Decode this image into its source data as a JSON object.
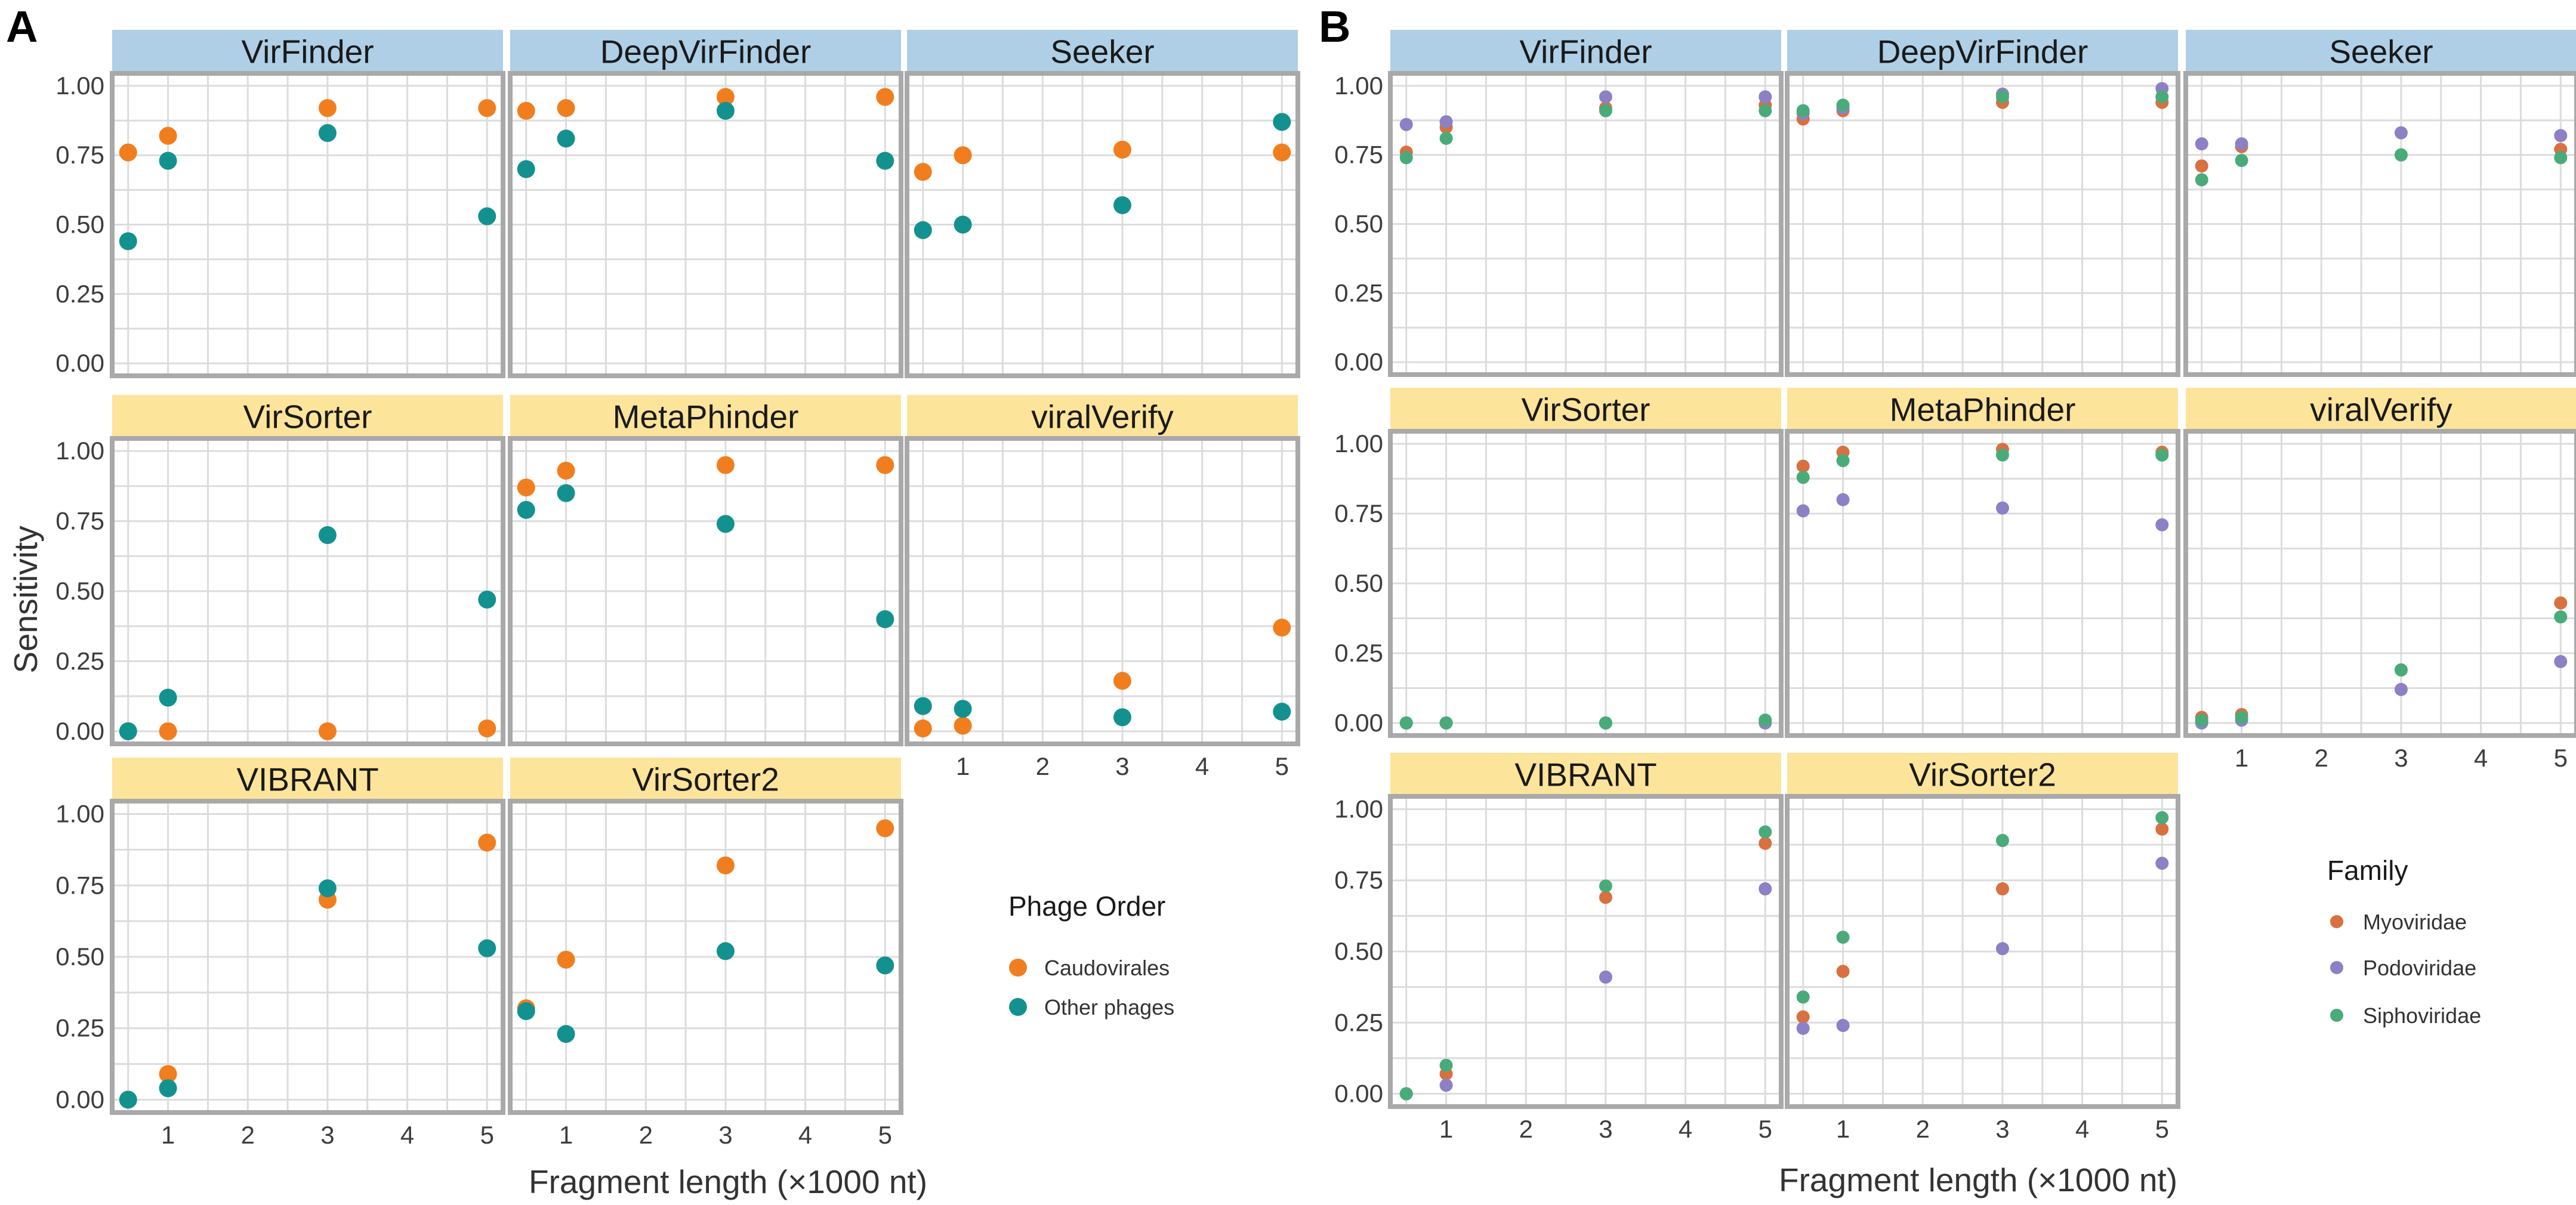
{
  "chart_data": [
    {
      "type": "scatter",
      "label": "A",
      "facet_strip_color": {
        "row1": "#aecfe6",
        "row2": "#fde49b",
        "row3": "#fde49b"
      },
      "ylabel": "Sensitivity",
      "xlabel": "Fragment length (×1000 nt)",
      "xlim": [
        0.3,
        5.2
      ],
      "ylim": [
        0,
        1
      ],
      "x_ticks": [
        1,
        2,
        3,
        4,
        5
      ],
      "y_ticks": [
        "0.00",
        "0.25",
        "0.50",
        "0.75",
        "1.00"
      ],
      "legend": {
        "title": "Phage Order",
        "entries": [
          {
            "name": "Caudovirales",
            "color": "#f17e1e"
          },
          {
            "name": "Other phages",
            "color": "#13918f"
          }
        ]
      },
      "x": [
        0.5,
        1,
        3,
        5
      ],
      "facets": [
        {
          "title": "VirFinder",
          "series": [
            {
              "name": "Caudovirales",
              "values": [
                0.76,
                0.82,
                0.92,
                0.92
              ]
            },
            {
              "name": "Other phages",
              "values": [
                0.44,
                0.73,
                0.83,
                0.53
              ]
            }
          ]
        },
        {
          "title": "DeepVirFinder",
          "series": [
            {
              "name": "Caudovirales",
              "values": [
                0.91,
                0.92,
                0.96,
                0.96
              ]
            },
            {
              "name": "Other phages",
              "values": [
                0.7,
                0.81,
                0.91,
                0.73
              ]
            }
          ]
        },
        {
          "title": "Seeker",
          "series": [
            {
              "name": "Caudovirales",
              "values": [
                0.69,
                0.75,
                0.77,
                0.76
              ]
            },
            {
              "name": "Other phages",
              "values": [
                0.48,
                0.5,
                0.57,
                0.87
              ]
            }
          ]
        },
        {
          "title": "VirSorter",
          "series": [
            {
              "name": "Caudovirales",
              "values": [
                0.0,
                0.0,
                0.0,
                0.01
              ]
            },
            {
              "name": "Other phages",
              "values": [
                0.0,
                0.12,
                0.7,
                0.47
              ]
            }
          ]
        },
        {
          "title": "MetaPhinder",
          "series": [
            {
              "name": "Caudovirales",
              "values": [
                0.87,
                0.93,
                0.95,
                0.95
              ]
            },
            {
              "name": "Other phages",
              "values": [
                0.79,
                0.85,
                0.74,
                0.4
              ]
            }
          ]
        },
        {
          "title": "viralVerify",
          "series": [
            {
              "name": "Caudovirales",
              "values": [
                0.01,
                0.02,
                0.18,
                0.37
              ]
            },
            {
              "name": "Other phages",
              "values": [
                0.09,
                0.08,
                0.05,
                0.07
              ]
            }
          ]
        },
        {
          "title": "VIBRANT",
          "series": [
            {
              "name": "Caudovirales",
              "values": [
                0.0,
                0.09,
                0.7,
                0.9
              ]
            },
            {
              "name": "Other phages",
              "values": [
                0.0,
                0.04,
                0.74,
                0.53
              ]
            }
          ]
        },
        {
          "title": "VirSorter2",
          "series": [
            {
              "name": "Caudovirales",
              "values": [
                0.32,
                0.49,
                0.82,
                0.95
              ]
            },
            {
              "name": "Other phages",
              "values": [
                0.31,
                0.23,
                0.52,
                0.47
              ]
            }
          ]
        }
      ]
    },
    {
      "type": "scatter",
      "label": "B",
      "facet_strip_color": {
        "row1": "#aecfe6",
        "row2": "#fde49b",
        "row3": "#fde49b"
      },
      "ylabel": "",
      "xlabel": "Fragment length (×1000 nt)",
      "xlim": [
        0.3,
        5.2
      ],
      "ylim": [
        0,
        1
      ],
      "x_ticks": [
        1,
        2,
        3,
        4,
        5
      ],
      "y_ticks": [
        "0.00",
        "0.25",
        "0.50",
        "0.75",
        "1.00"
      ],
      "legend": {
        "title": "Family",
        "entries": [
          {
            "name": "Myoviridae",
            "color": "#d9703f"
          },
          {
            "name": "Podoviridae",
            "color": "#8e80c4"
          },
          {
            "name": "Siphoviridae",
            "color": "#4aab7a"
          }
        ]
      },
      "x": [
        0.5,
        1,
        3,
        5
      ],
      "facets": [
        {
          "title": "VirFinder",
          "series": [
            {
              "name": "Myoviridae",
              "values": [
                0.76,
                0.85,
                0.92,
                0.93
              ]
            },
            {
              "name": "Podoviridae",
              "values": [
                0.86,
                0.87,
                0.96,
                0.96
              ]
            },
            {
              "name": "Siphoviridae",
              "values": [
                0.74,
                0.81,
                0.91,
                0.91
              ]
            }
          ]
        },
        {
          "title": "DeepVirFinder",
          "series": [
            {
              "name": "Myoviridae",
              "values": [
                0.88,
                0.91,
                0.94,
                0.94
              ]
            },
            {
              "name": "Podoviridae",
              "values": [
                0.9,
                0.92,
                0.97,
                0.99
              ]
            },
            {
              "name": "Siphoviridae",
              "values": [
                0.91,
                0.93,
                0.96,
                0.96
              ]
            }
          ]
        },
        {
          "title": "Seeker",
          "series": [
            {
              "name": "Myoviridae",
              "values": [
                0.71,
                0.78,
                0.75,
                0.77
              ]
            },
            {
              "name": "Podoviridae",
              "values": [
                0.79,
                0.79,
                0.83,
                0.82
              ]
            },
            {
              "name": "Siphoviridae",
              "values": [
                0.66,
                0.73,
                0.75,
                0.74
              ]
            }
          ]
        },
        {
          "title": "VirSorter",
          "series": [
            {
              "name": "Myoviridae",
              "values": [
                0.0,
                0.0,
                0.0,
                0.01
              ]
            },
            {
              "name": "Podoviridae",
              "values": [
                0.0,
                0.0,
                0.0,
                0.0
              ]
            },
            {
              "name": "Siphoviridae",
              "values": [
                0.0,
                0.0,
                0.0,
                0.01
              ]
            }
          ]
        },
        {
          "title": "MetaPhinder",
          "series": [
            {
              "name": "Myoviridae",
              "values": [
                0.92,
                0.97,
                0.98,
                0.97
              ]
            },
            {
              "name": "Podoviridae",
              "values": [
                0.76,
                0.8,
                0.77,
                0.71
              ]
            },
            {
              "name": "Siphoviridae",
              "values": [
                0.88,
                0.94,
                0.96,
                0.96
              ]
            }
          ]
        },
        {
          "title": "viralVerify",
          "series": [
            {
              "name": "Myoviridae",
              "values": [
                0.02,
                0.03,
                0.19,
                0.43
              ]
            },
            {
              "name": "Podoviridae",
              "values": [
                0.0,
                0.01,
                0.12,
                0.22
              ]
            },
            {
              "name": "Siphoviridae",
              "values": [
                0.01,
                0.02,
                0.19,
                0.38
              ]
            }
          ]
        },
        {
          "title": "VIBRANT",
          "series": [
            {
              "name": "Myoviridae",
              "values": [
                0.0,
                0.07,
                0.69,
                0.88
              ]
            },
            {
              "name": "Podoviridae",
              "values": [
                0.0,
                0.03,
                0.41,
                0.72
              ]
            },
            {
              "name": "Siphoviridae",
              "values": [
                0.0,
                0.1,
                0.73,
                0.92
              ]
            }
          ]
        },
        {
          "title": "VirSorter2",
          "series": [
            {
              "name": "Myoviridae",
              "values": [
                0.27,
                0.43,
                0.72,
                0.93
              ]
            },
            {
              "name": "Podoviridae",
              "values": [
                0.23,
                0.24,
                0.51,
                0.81
              ]
            },
            {
              "name": "Siphoviridae",
              "values": [
                0.34,
                0.55,
                0.89,
                0.97
              ]
            }
          ]
        }
      ]
    }
  ]
}
